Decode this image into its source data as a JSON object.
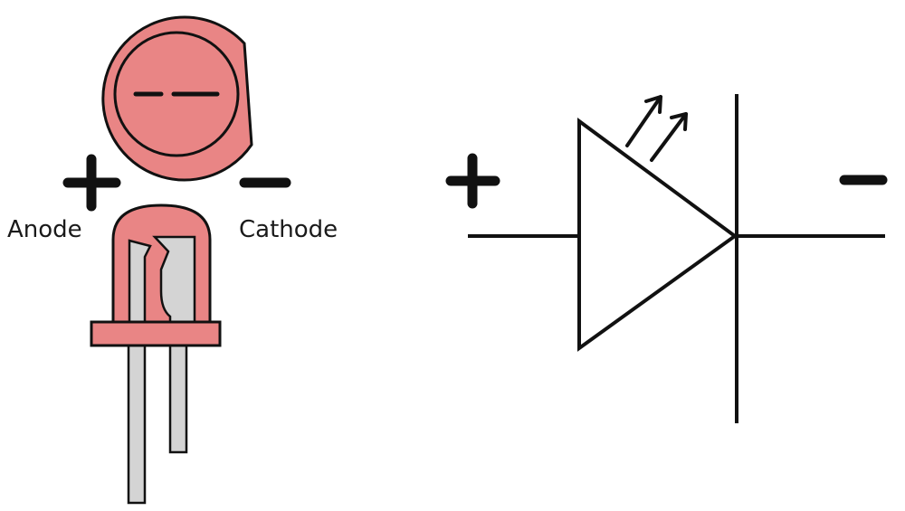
{
  "labels": {
    "anode": "Anode",
    "cathode": "Cathode"
  },
  "colors": {
    "led_body": "#e98585",
    "lead_metal": "#d4d4d4",
    "stroke": "#111111",
    "background": "#ffffff"
  },
  "polarity": {
    "positive_symbol": "plus-icon",
    "negative_symbol": "minus-icon"
  }
}
